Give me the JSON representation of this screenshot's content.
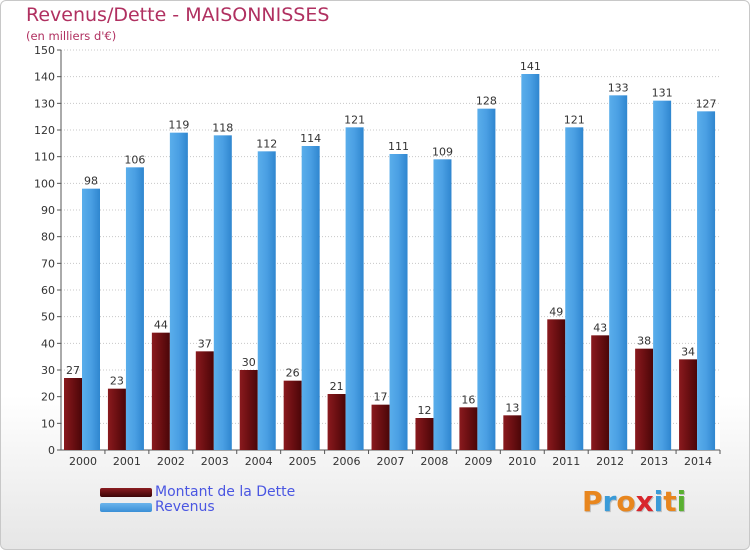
{
  "title": "Revenus/Dette - MAISONNISSES",
  "subtitle": "(en milliers d'€)",
  "chart_data": {
    "type": "bar",
    "categories": [
      "2000",
      "2001",
      "2002",
      "2003",
      "2004",
      "2005",
      "2006",
      "2007",
      "2008",
      "2009",
      "2010",
      "2011",
      "2012",
      "2013",
      "2014"
    ],
    "series": [
      {
        "name": "Montant de la Dette",
        "color": "#6b0f12",
        "values": [
          27,
          23,
          44,
          37,
          30,
          26,
          21,
          17,
          12,
          16,
          13,
          49,
          43,
          38,
          34
        ]
      },
      {
        "name": "Revenus",
        "color": "#4a9fe3",
        "values": [
          98,
          106,
          119,
          118,
          112,
          114,
          121,
          111,
          109,
          128,
          141,
          121,
          133,
          131,
          127
        ]
      }
    ],
    "ylim": [
      0,
      150
    ],
    "yticks": [
      0,
      10,
      20,
      30,
      40,
      50,
      60,
      70,
      80,
      90,
      100,
      110,
      120,
      130,
      140,
      150
    ],
    "grid": true
  },
  "legend": {
    "items": [
      {
        "label": "Montant de la Dette",
        "color": "#6b0f12"
      },
      {
        "label": "Revenus",
        "color": "#4a9fe3"
      }
    ]
  },
  "logo": {
    "text": "Proxiti",
    "letters": [
      "P",
      "r",
      "o",
      "x",
      "i",
      "t",
      "i"
    ],
    "colors": [
      "#e8861e",
      "#3a9bd8",
      "#e8861e",
      "#d8262c",
      "#3a9bd8",
      "#e8861e",
      "#5ab031"
    ]
  }
}
